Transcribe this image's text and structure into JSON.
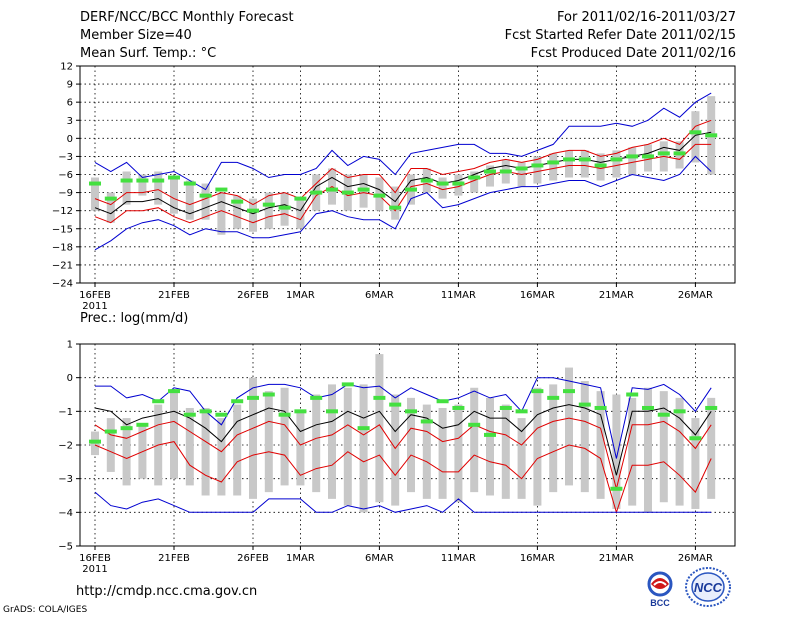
{
  "header": {
    "title": "DERF/NCC/BCC Monthly Forecast",
    "member_size": "Member Size=40",
    "variable": "Mean Surf. Temp.: °C",
    "period": "For 2011/02/16-2011/03/27",
    "refer_date": "Fcst Started Refer Date 2011/02/15",
    "produced_date": "Fcst Produced Date 2011/02/16"
  },
  "footer": {
    "url": "http://cmdp.ncc.cma.gov.cn",
    "grads": "GrADS: COLA/IGES",
    "bcc_logo_text": "BCC",
    "ncc_logo_text": "NCC"
  },
  "colors": {
    "mean": "#000000",
    "inner_band": "#e00000",
    "outer_band": "#0000d0",
    "spread_bar": "#c8c8c8",
    "obs": "#44e040"
  },
  "chart_data": [
    {
      "type": "line",
      "title": "Mean Surf. Temp.: °C",
      "x_count": 40,
      "x_start": "2011-02-16",
      "x_tick_labels": [
        "16FEB",
        "21FEB",
        "26FEB",
        "1MAR",
        "6MAR",
        "11MAR",
        "16MAR",
        "21MAR",
        "26MAR"
      ],
      "x_tick_index": [
        0,
        5,
        10,
        13,
        18,
        23,
        28,
        33,
        38
      ],
      "x_year_label": "2011",
      "ylim": [
        -24,
        12
      ],
      "y_ticks": [
        12,
        9,
        6,
        3,
        0,
        -3,
        -6,
        -9,
        -12,
        -15,
        -18,
        -21,
        -24
      ],
      "grid": true,
      "series": [
        {
          "name": "ensemble-max",
          "color": "#0000d0",
          "values": [
            -4,
            -5.5,
            -4,
            -6.5,
            -6,
            -5.5,
            -7,
            -8.5,
            -4,
            -4,
            -5,
            -6.5,
            -6,
            -6,
            -5,
            -2,
            -4.5,
            -3,
            -3.5,
            -6,
            -2.5,
            -2,
            -1.5,
            -1,
            -1,
            -2.5,
            -2.5,
            -3,
            -2,
            -1,
            2,
            2,
            2,
            2.5,
            2,
            3,
            5,
            3.5,
            6,
            7.5
          ]
        },
        {
          "name": "ensemble-upper",
          "color": "#e00000",
          "values": [
            -10,
            -11,
            -9,
            -9,
            -8.5,
            -10,
            -11,
            -10,
            -9,
            -9.5,
            -11,
            -9.5,
            -9,
            -10,
            -7.5,
            -5,
            -6.5,
            -6,
            -6,
            -9,
            -5,
            -5,
            -6,
            -5.5,
            -5,
            -4,
            -3.5,
            -4,
            -3.5,
            -2.5,
            -2,
            -2,
            -3,
            -2.5,
            -1.5,
            -1,
            0,
            -1,
            2,
            3
          ]
        },
        {
          "name": "ensemble-mean",
          "color": "#000000",
          "values": [
            -11.5,
            -12.5,
            -10.5,
            -10.5,
            -10,
            -11.5,
            -12.5,
            -11.5,
            -10.5,
            -11.5,
            -12.5,
            -11.5,
            -11,
            -12,
            -8,
            -6.5,
            -8,
            -7.5,
            -8.5,
            -10.5,
            -7,
            -6.5,
            -7.5,
            -7,
            -6,
            -5,
            -4.5,
            -5,
            -4.5,
            -4,
            -3.5,
            -3.5,
            -4,
            -3.5,
            -3,
            -2.5,
            -1.5,
            -2,
            0.5,
            1
          ]
        },
        {
          "name": "ensemble-lower",
          "color": "#e00000",
          "values": [
            -13,
            -14,
            -12,
            -12,
            -11.5,
            -13,
            -14,
            -13,
            -12,
            -13,
            -14,
            -13,
            -12.5,
            -13.5,
            -9.5,
            -8,
            -9.5,
            -9,
            -9.5,
            -12,
            -8,
            -7.5,
            -8.5,
            -8,
            -7,
            -6,
            -5.5,
            -6,
            -5.5,
            -5,
            -4.5,
            -4.5,
            -5,
            -4.5,
            -4,
            -3.5,
            -3,
            -3.5,
            -1,
            -1
          ]
        },
        {
          "name": "ensemble-min",
          "color": "#0000d0",
          "values": [
            -18.5,
            -17,
            -15,
            -14,
            -13.5,
            -14.5,
            -16,
            -15,
            -15.5,
            -15.5,
            -16.5,
            -16.5,
            -16,
            -15.5,
            -12.5,
            -12,
            -13,
            -13.5,
            -13.5,
            -15,
            -10,
            -9,
            -11.5,
            -11,
            -10,
            -9,
            -8.5,
            -8,
            -8,
            -7.5,
            -7,
            -7,
            -8,
            -7,
            -6,
            -6.5,
            -7,
            -6,
            -3,
            -5.5
          ]
        }
      ],
      "spread_bars": [
        [
          -12,
          -6.5
        ],
        [
          -14,
          -9
        ],
        [
          -11,
          -5.5
        ],
        [
          -9.5,
          -6
        ],
        [
          -11,
          -5.5
        ],
        [
          -12.5,
          -6.5
        ],
        [
          -13.5,
          -7
        ],
        [
          -13.5,
          -7.5
        ],
        [
          -16,
          -9
        ],
        [
          -15,
          -9.5
        ],
        [
          -15.5,
          -10
        ],
        [
          -15,
          -9
        ],
        [
          -14.5,
          -9
        ],
        [
          -15,
          -10
        ],
        [
          -12,
          -6
        ],
        [
          -11,
          -5
        ],
        [
          -12,
          -6
        ],
        [
          -11.5,
          -6
        ],
        [
          -12,
          -6.5
        ],
        [
          -13.5,
          -8
        ],
        [
          -11,
          -6
        ],
        [
          -9,
          -5
        ],
        [
          -10,
          -6.5
        ],
        [
          -9.5,
          -6
        ],
        [
          -9,
          -5.5
        ],
        [
          -8,
          -4.5
        ],
        [
          -7.5,
          -3.5
        ],
        [
          -8,
          -4
        ],
        [
          -7.5,
          -3
        ],
        [
          -7,
          -2.5
        ],
        [
          -6.5,
          -2
        ],
        [
          -6.5,
          -2
        ],
        [
          -7,
          -2.5
        ],
        [
          -6.5,
          -2
        ],
        [
          -6,
          -1.5
        ],
        [
          -5.5,
          -1
        ],
        [
          -5.5,
          -0.5
        ],
        [
          -5,
          -0.5
        ],
        [
          -4,
          4.5
        ],
        [
          -6,
          7
        ]
      ],
      "observed": [
        -7.5,
        -10,
        -7,
        -7,
        -7,
        -6.5,
        -7.5,
        -9.5,
        -8.5,
        -10.5,
        -12,
        -11,
        -11.5,
        -10,
        -9,
        -8.5,
        -9,
        -8.5,
        -9.5,
        -11.5,
        -8.5,
        -7,
        -7.5,
        -7.5,
        -6.5,
        -5.5,
        -5.5,
        -5,
        -4.5,
        -4,
        -3.5,
        -3.5,
        -4.5,
        -3.5,
        -3,
        -3,
        -2.5,
        -2.5,
        1,
        0.5
      ]
    },
    {
      "type": "line",
      "title": "Prec.: log(mm/d)",
      "x_count": 40,
      "x_tick_labels": [
        "16FEB",
        "21FEB",
        "26FEB",
        "1MAR",
        "6MAR",
        "11MAR",
        "16MAR",
        "21MAR",
        "26MAR"
      ],
      "x_tick_index": [
        0,
        5,
        10,
        13,
        18,
        23,
        28,
        33,
        38
      ],
      "x_year_label": "2011",
      "ylim": [
        -5,
        1
      ],
      "y_ticks": [
        1,
        0,
        -1,
        -2,
        -3,
        -4,
        -5
      ],
      "grid": true,
      "series": [
        {
          "name": "ensemble-max",
          "color": "#0000d0",
          "values": [
            -0.25,
            -0.25,
            -0.6,
            -0.5,
            -0.7,
            -0.3,
            -0.4,
            -1.0,
            -1.4,
            -0.6,
            -0.3,
            -0.2,
            -0.2,
            -0.3,
            -0.6,
            -0.5,
            -0.2,
            -0.3,
            -0.25,
            -0.6,
            -0.3,
            -0.5,
            -0.7,
            -0.6,
            -0.4,
            -0.6,
            -0.5,
            -1.0,
            0.0,
            0.0,
            -0.1,
            -0.2,
            -0.3,
            -2.4,
            -0.3,
            -0.35,
            -0.2,
            -0.5,
            -1.0,
            -0.3
          ]
        },
        {
          "name": "ensemble-upper",
          "color": "#000000",
          "values": [
            -0.9,
            -1.0,
            -1.4,
            -1.2,
            -1.1,
            -1.0,
            -1.2,
            -1.5,
            -1.9,
            -1.3,
            -1.1,
            -0.9,
            -1.0,
            -1.6,
            -1.4,
            -1.3,
            -1.0,
            -1.2,
            -1.0,
            -1.6,
            -1.1,
            -1.2,
            -1.5,
            -1.4,
            -1.0,
            -1.2,
            -1.2,
            -1.6,
            -1.1,
            -0.9,
            -0.8,
            -0.9,
            -1.1,
            -2.9,
            -1.0,
            -1.0,
            -0.9,
            -1.2,
            -1.7,
            -1.0
          ]
        },
        {
          "name": "ensemble-mean",
          "color": "#e00000",
          "values": [
            -1.4,
            -1.7,
            -1.8,
            -1.6,
            -1.4,
            -1.3,
            -1.6,
            -1.9,
            -2.2,
            -1.7,
            -1.5,
            -1.3,
            -1.4,
            -2.0,
            -1.8,
            -1.7,
            -1.4,
            -1.7,
            -1.4,
            -2.1,
            -1.5,
            -1.6,
            -1.9,
            -1.8,
            -1.4,
            -1.6,
            -1.7,
            -2.0,
            -1.5,
            -1.3,
            -1.2,
            -1.3,
            -1.5,
            -3.3,
            -1.4,
            -1.4,
            -1.3,
            -1.6,
            -2.1,
            -1.4
          ]
        },
        {
          "name": "ensemble-lower",
          "color": "#e00000",
          "values": [
            -2.0,
            -2.2,
            -2.4,
            -2.2,
            -2.0,
            -1.9,
            -2.6,
            -2.9,
            -3.1,
            -2.5,
            -2.3,
            -2.2,
            -2.3,
            -2.9,
            -2.7,
            -2.6,
            -2.2,
            -2.5,
            -2.3,
            -2.9,
            -2.3,
            -2.5,
            -2.8,
            -2.8,
            -2.3,
            -2.5,
            -2.6,
            -3.0,
            -2.4,
            -2.2,
            -2.0,
            -2.1,
            -2.4,
            -4.0,
            -2.6,
            -2.6,
            -2.5,
            -2.9,
            -3.4,
            -2.4
          ]
        },
        {
          "name": "ensemble-min",
          "color": "#0000d0",
          "values": [
            -3.4,
            -3.8,
            -3.9,
            -3.7,
            -3.6,
            -3.8,
            -4.0,
            -4.0,
            -4.0,
            -4.0,
            -4.0,
            -3.6,
            -3.6,
            -3.6,
            -4.0,
            -4.0,
            -3.8,
            -3.9,
            -3.8,
            -4.0,
            -3.9,
            -3.8,
            -4.0,
            -3.6,
            -4.0,
            -4.0,
            -4.0,
            -4.0,
            -4.0,
            -4.0,
            -4.0,
            -4.0,
            -4.0,
            -4.0,
            -4.0,
            -4.0,
            -4.0,
            -4.0,
            -4.0,
            -4.0
          ]
        }
      ],
      "spread_bars": [
        [
          -2.3,
          -1.6
        ],
        [
          -2.8,
          -1.2
        ],
        [
          -3.2,
          -1.2
        ],
        [
          -3.0,
          -1.4
        ],
        [
          -3.2,
          -0.8
        ],
        [
          -3.0,
          -0.4
        ],
        [
          -3.2,
          -0.9
        ],
        [
          -3.5,
          -0.9
        ],
        [
          -3.5,
          -1.2
        ],
        [
          -3.5,
          -0.8
        ],
        [
          -3.6,
          0.0
        ],
        [
          -3.4,
          -0.4
        ],
        [
          -3.2,
          -0.3
        ],
        [
          -3.2,
          -1.0
        ],
        [
          -3.4,
          -0.5
        ],
        [
          -3.6,
          -0.2
        ],
        [
          -3.8,
          -0.3
        ],
        [
          -4.0,
          -0.2
        ],
        [
          -3.7,
          0.7
        ],
        [
          -3.8,
          -0.5
        ],
        [
          -3.4,
          -0.6
        ],
        [
          -3.6,
          -0.8
        ],
        [
          -3.6,
          -0.9
        ],
        [
          -3.7,
          -0.8
        ],
        [
          -3.4,
          -0.3
        ],
        [
          -3.5,
          -0.6
        ],
        [
          -3.6,
          -0.8
        ],
        [
          -3.6,
          -1.2
        ],
        [
          -3.8,
          -0.3
        ],
        [
          -3.4,
          -0.2
        ],
        [
          -3.2,
          0.3
        ],
        [
          -3.4,
          -0.1
        ],
        [
          -3.6,
          -0.4
        ],
        [
          -3.9,
          -0.5
        ],
        [
          -3.8,
          -0.6
        ],
        [
          -4.0,
          -0.3
        ],
        [
          -3.7,
          -0.4
        ],
        [
          -3.8,
          -0.6
        ],
        [
          -3.9,
          -1.2
        ],
        [
          -3.6,
          -0.6
        ]
      ],
      "observed": [
        -1.9,
        -1.6,
        -1.5,
        -1.4,
        -0.7,
        -0.4,
        -1.1,
        -1.0,
        -1.1,
        -0.7,
        -0.6,
        -0.5,
        -1.1,
        -1.0,
        -0.6,
        -1.0,
        -0.2,
        -1.5,
        -0.6,
        -0.8,
        -1.0,
        -1.3,
        -0.7,
        -0.9,
        -1.4,
        -1.7,
        -0.9,
        -1.0,
        -0.4,
        -0.6,
        -0.4,
        -0.8,
        -0.9,
        -3.3,
        -0.5,
        -0.9,
        -1.1,
        -1.0,
        -1.8,
        -0.9
      ]
    }
  ]
}
